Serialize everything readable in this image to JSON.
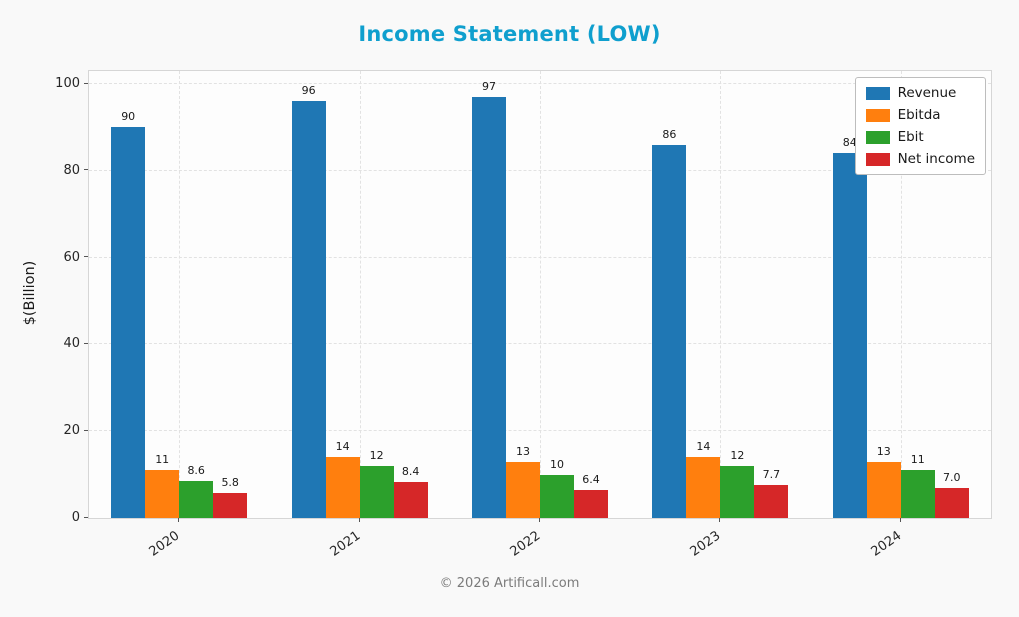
{
  "footer": "© 2026 Artificall.com",
  "colors": {
    "title": "#0f9fce",
    "revenue": "#1f77b4",
    "ebitda": "#ff7f0e",
    "ebit": "#2ca02c",
    "net_income": "#d62728"
  },
  "chart_data": {
    "type": "bar",
    "title": "Income Statement (LOW)",
    "ylabel": "$(Billion)",
    "xlabel": "",
    "categories": [
      "2020",
      "2021",
      "2022",
      "2023",
      "2024"
    ],
    "series": [
      {
        "name": "Revenue",
        "color": "#1f77b4",
        "values": [
          90,
          96,
          97,
          86,
          84
        ],
        "labels": [
          "90",
          "96",
          "97",
          "86",
          "84"
        ]
      },
      {
        "name": "Ebitda",
        "color": "#ff7f0e",
        "values": [
          11,
          14,
          13,
          14,
          13
        ],
        "labels": [
          "11",
          "14",
          "13",
          "14",
          "13"
        ]
      },
      {
        "name": "Ebit",
        "color": "#2ca02c",
        "values": [
          8.6,
          12,
          10,
          12,
          11
        ],
        "labels": [
          "8.6",
          "12",
          "10",
          "12",
          "11"
        ]
      },
      {
        "name": "Net income",
        "color": "#d62728",
        "values": [
          5.8,
          8.4,
          6.4,
          7.7,
          7.0
        ],
        "labels": [
          "5.8",
          "8.4",
          "6.4",
          "7.7",
          "7.0"
        ]
      }
    ],
    "ylim": [
      0,
      100
    ],
    "y_axis_top": 103,
    "yticks": [
      0,
      20,
      40,
      60,
      80,
      100
    ],
    "grid": true,
    "grid_style": "dashed",
    "legend_position": "top-right",
    "xtick_rotation": 35
  }
}
